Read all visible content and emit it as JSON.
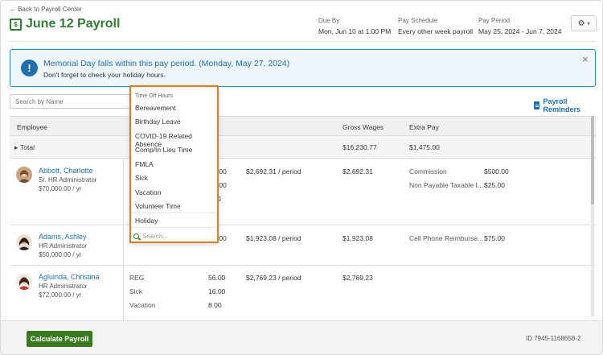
{
  "header": {
    "back_link": "← Back to Payroll Center",
    "title": "June 12 Payroll",
    "due_label": "Due By",
    "due_value": "Mon, Jun 10 at 1:00 PM",
    "schedule_label": "Pay Schedule",
    "schedule_value": "Every other week payroll",
    "period_label": "Pay Period",
    "period_value": "May 25, 2024 - Jun 7, 2024",
    "settings_icon": "gear-icon"
  },
  "alert": {
    "title": "Memorial Day falls within this pay period. (Monday, May 27, 2024)",
    "subtitle": "Don't forget to check your holiday hours.",
    "icon": "exclamation-icon",
    "close": "×"
  },
  "toolbar": {
    "search_placeholder": "Search by Name",
    "reminders_label": "Payroll Reminders"
  },
  "table": {
    "columns": {
      "employee": "Employee",
      "gross": "Gross Wages",
      "extra": "Extra Pay"
    },
    "total": {
      "label": "Total",
      "gross": "$16,230.77",
      "extra": "$1,475.00"
    },
    "rows": [
      {
        "name": "Abbott, Charlotte",
        "role": "Sr. HR Administrator",
        "salary": "$70,000.00 / yr",
        "hours": [
          ".00",
          ".00",
          "0"
        ],
        "rate": "$2,692.31 / period",
        "gross": "$2,692.31",
        "extra": [
          {
            "label": "Commission",
            "amount": "$500.00"
          },
          {
            "label": "Non Payable Taxable I...",
            "amount": "$25.00"
          }
        ]
      },
      {
        "name": "Adams, Ashley",
        "role": "HR Administrator",
        "salary": "$50,000.00 / yr",
        "hours": [
          ".00"
        ],
        "rate": "$1,923.08 / period",
        "gross": "$1,923.08",
        "extra": [
          {
            "label": "Cell Phone Reimburse...",
            "amount": "$75.00"
          }
        ]
      },
      {
        "name": "Agluinda, Christina",
        "role": "HR Administrator",
        "salary": "$72,000.00 / yr",
        "hour_lines": [
          {
            "type": "REG",
            "hours": "56.00"
          },
          {
            "type": "Sick",
            "hours": "16.00"
          },
          {
            "type": "Vacation",
            "hours": "8.00"
          }
        ],
        "rate": "$2,769.23 / period",
        "gross": "$2,769.23"
      }
    ]
  },
  "dropdown": {
    "header": "Time Off Hours",
    "items": [
      "Bereavement",
      "Birthday Leave",
      "COVID-19 Related Absence",
      "Comp/In Lieu Time",
      "FMLA",
      "Sick",
      "Vacation",
      "Volunteer Time",
      "Holiday"
    ],
    "search_placeholder": "Search..."
  },
  "footer": {
    "calculate_label": "Calculate Payroll",
    "id": "ID 7945-1168658-2"
  },
  "colors": {
    "brand_green": "#2e7d32",
    "link_blue": "#1e6fb0",
    "dropdown_border": "#e07a1f",
    "button_green": "#3a7a1e"
  }
}
